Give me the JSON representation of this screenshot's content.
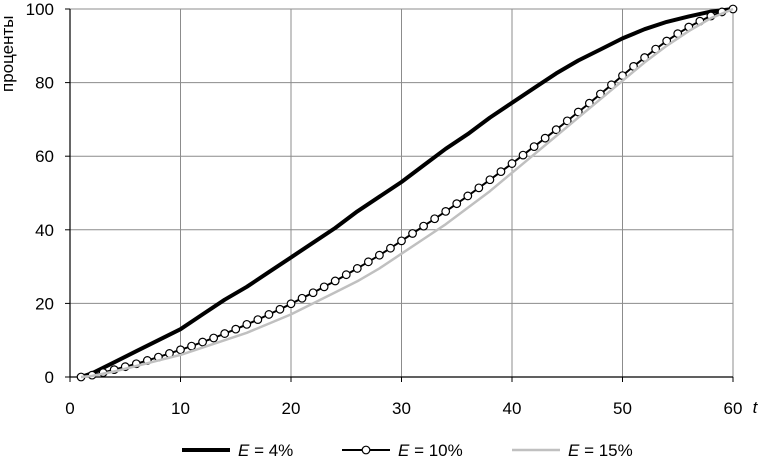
{
  "chart_data": {
    "type": "line",
    "ylabel": "проценты",
    "xlabel": "t",
    "xlim": [
      0,
      60
    ],
    "ylim": [
      0,
      100
    ],
    "x_ticks": [
      0,
      10,
      20,
      30,
      40,
      50,
      60
    ],
    "y_ticks": [
      0,
      20,
      40,
      60,
      80,
      100
    ],
    "grid": true,
    "legend_position": "bottom",
    "series": [
      {
        "name": "E = 4%",
        "name_var": "E",
        "name_rest": " = 4%",
        "color": "#000000",
        "style": "thick",
        "x": [
          1,
          2,
          4,
          6,
          8,
          10,
          12,
          14,
          16,
          18,
          20,
          22,
          24,
          26,
          28,
          30,
          32,
          34,
          36,
          38,
          40,
          42,
          44,
          46,
          48,
          50,
          52,
          54,
          56,
          58,
          60
        ],
        "y": [
          0,
          1,
          4,
          7,
          10,
          13,
          17,
          21,
          24.5,
          28.5,
          32.5,
          36.5,
          40.5,
          45,
          49,
          53,
          57.5,
          62,
          66,
          70.5,
          74.5,
          78.5,
          82.5,
          86,
          89,
          92,
          94.5,
          96.5,
          98,
          99.3,
          100
        ]
      },
      {
        "name": "E = 10%",
        "name_var": "E",
        "name_rest": " = 10%",
        "color": "#000000",
        "style": "markers",
        "x": [
          1,
          2,
          3,
          4,
          5,
          6,
          7,
          8,
          9,
          10,
          11,
          12,
          13,
          14,
          15,
          16,
          17,
          18,
          19,
          20,
          21,
          22,
          23,
          24,
          25,
          26,
          27,
          28,
          29,
          30,
          31,
          32,
          33,
          34,
          35,
          36,
          37,
          38,
          39,
          40,
          41,
          42,
          43,
          44,
          45,
          46,
          47,
          48,
          49,
          50,
          51,
          52,
          53,
          54,
          55,
          56,
          57,
          58,
          59,
          60
        ],
        "y": [
          0,
          0.5,
          1.2,
          2,
          2.8,
          3.6,
          4.5,
          5.4,
          6.4,
          7.4,
          8.4,
          9.5,
          10.6,
          11.8,
          13,
          14.3,
          15.6,
          17,
          18.4,
          19.9,
          21.4,
          22.9,
          24.5,
          26.1,
          27.8,
          29.5,
          31.3,
          33.1,
          35,
          37,
          39,
          41,
          43,
          45,
          47.1,
          49.2,
          51.4,
          53.6,
          55.8,
          58,
          60.3,
          62.6,
          64.9,
          67.2,
          69.6,
          72,
          74.4,
          76.9,
          79.4,
          81.9,
          84.4,
          86.8,
          89.1,
          91.3,
          93.3,
          95.1,
          96.7,
          98.1,
          99.2,
          100
        ]
      },
      {
        "name": "E = 15%",
        "name_var": "E",
        "name_rest": " = 15%",
        "color": "#c0c0c0",
        "style": "thin",
        "x": [
          1,
          2,
          4,
          6,
          8,
          10,
          12,
          14,
          16,
          18,
          20,
          22,
          24,
          26,
          28,
          30,
          32,
          34,
          36,
          38,
          40,
          42,
          44,
          46,
          48,
          50,
          52,
          54,
          56,
          58,
          60
        ],
        "y": [
          0,
          0.3,
          1.5,
          3,
          4.5,
          6,
          8,
          10,
          12,
          14.5,
          17,
          20,
          23,
          26,
          29.5,
          33.5,
          37.5,
          41.5,
          46,
          50.5,
          55.5,
          60.5,
          65.5,
          70.5,
          75.5,
          80.5,
          85.5,
          90,
          94,
          97.5,
          100
        ]
      }
    ]
  }
}
